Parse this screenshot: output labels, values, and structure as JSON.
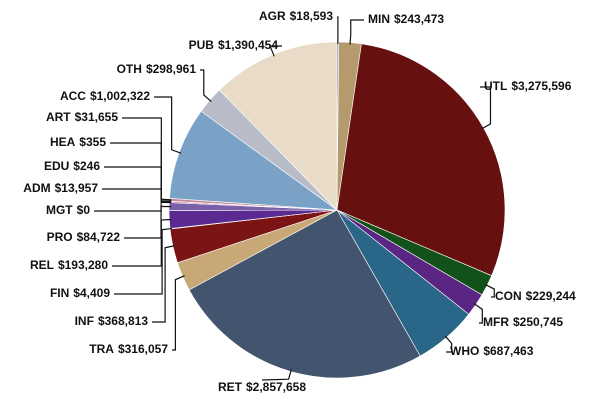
{
  "chart_data": {
    "type": "pie",
    "categories": [
      "AGR",
      "MIN",
      "UTL",
      "CON",
      "MFR",
      "WHO",
      "RET",
      "TRA",
      "INF",
      "FIN",
      "REL",
      "PRO",
      "MGT",
      "ADM",
      "EDU",
      "HEA",
      "ART",
      "ACC",
      "OTH",
      "PUB"
    ],
    "values": [
      18593,
      243473,
      3275596,
      229244,
      250745,
      687463,
      2857658,
      316057,
      368813,
      4409,
      193280,
      84722,
      0,
      13957,
      246,
      355,
      31655,
      1002322,
      298961,
      1390454
    ],
    "value_labels": [
      "$18,593",
      "$243,473",
      "$3,275,596",
      "$229,244",
      "$250,745",
      "$687,463",
      "$2,857,658",
      "$316,057",
      "$368,813",
      "$4,409",
      "$193,280",
      "$84,722",
      "$0",
      "$13,957",
      "$246",
      "$355",
      "$31,655",
      "$1,002,322",
      "$298,961",
      "$1,390,454"
    ],
    "colors": [
      "#8888aa",
      "#b49a6c",
      "#661010",
      "#12521a",
      "#5b2583",
      "#2a6688",
      "#43546f",
      "#c9a877",
      "#7b1515",
      "#b07030",
      "#5a2a90",
      "#7a60a8",
      "#999999",
      "#a06080",
      "#c08090",
      "#d09aa0",
      "#c88aa0",
      "#7aa2c6",
      "#b8bcc8",
      "#e8dcc8"
    ]
  }
}
